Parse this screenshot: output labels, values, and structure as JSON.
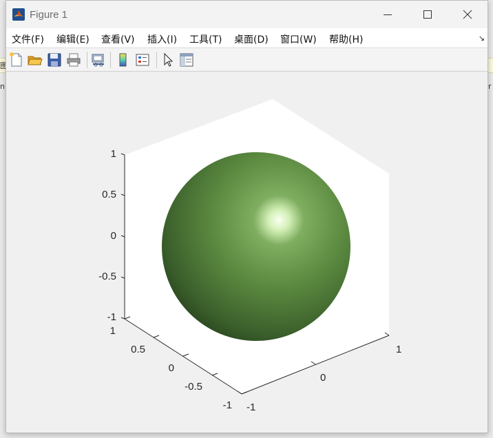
{
  "background": {
    "left_glyphs": [
      "图",
      "n"
    ],
    "right_glyphs": [
      "r"
    ]
  },
  "window": {
    "title": "Figure 1",
    "app_icon": "matlab-icon",
    "controls": [
      "minimize-icon",
      "maximize-icon",
      "close-icon"
    ]
  },
  "menu": {
    "items": [
      "文件(F)",
      "编辑(E)",
      "查看(V)",
      "插入(I)",
      "工具(T)",
      "桌面(D)",
      "窗口(W)",
      "帮助(H)"
    ],
    "overflow_icon": "dock-arrow-icon"
  },
  "toolbar": {
    "buttons": [
      "new-figure-icon",
      "open-file-icon",
      "save-icon",
      "print-icon",
      "link-plot-icon",
      "colorbar-icon",
      "legend-icon",
      "pointer-icon",
      "property-inspector-icon"
    ]
  },
  "plot": {
    "object": "sphere",
    "surface_color": "#5f9144",
    "box_color": "#ffffff",
    "z_ticks": [
      "1",
      "0.5",
      "0",
      "-0.5",
      "-1"
    ],
    "y_ticks": [
      "1",
      "0.5",
      "0",
      "-0.5",
      "-1"
    ],
    "x_ticks": [
      "-1",
      "0",
      "1"
    ]
  }
}
